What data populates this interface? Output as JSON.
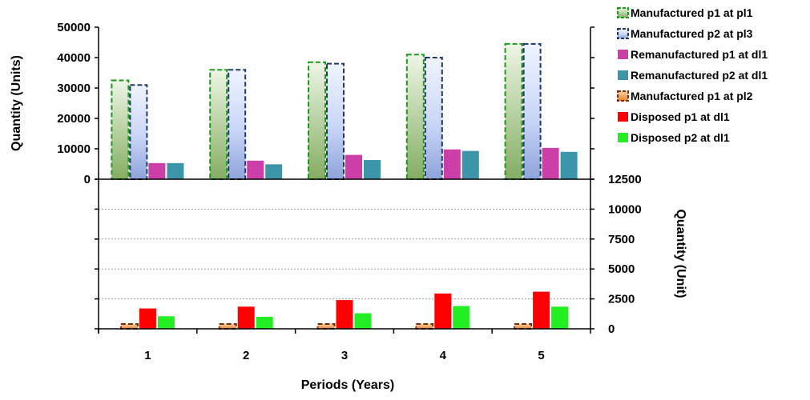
{
  "chart_data": [
    {
      "type": "bar",
      "panel": "top",
      "categories": [
        "1",
        "2",
        "3",
        "4",
        "5"
      ],
      "ylabel": "Quantity (Units)",
      "ylim": [
        0,
        50000
      ],
      "yticks": [
        "0",
        "10000",
        "20000",
        "30000",
        "40000",
        "50000"
      ],
      "grid": false,
      "series": [
        {
          "name": "Manufactured p1 at pl1",
          "values": [
            32500,
            36000,
            38500,
            41000,
            44500
          ],
          "color": "#8db36e",
          "style": "gradient-dashed-green"
        },
        {
          "name": "Manufactured p2 at pl3",
          "values": [
            31000,
            36000,
            38000,
            40000,
            44500
          ],
          "color": "#9fb2e6",
          "style": "gradient-dashed-navy"
        },
        {
          "name": "Remanufactured p1 at dl1",
          "values": [
            5300,
            6100,
            8000,
            9800,
            10300
          ],
          "color": "#cc3fa8"
        },
        {
          "name": "Remanufactured p2 at dl1",
          "values": [
            5300,
            4900,
            6300,
            9300,
            9000
          ],
          "color": "#3d95aa"
        }
      ]
    },
    {
      "type": "bar",
      "panel": "bottom",
      "categories": [
        "1",
        "2",
        "3",
        "4",
        "5"
      ],
      "xlabel": "Periods (Years)",
      "ylabel": "Quantity (Unit)",
      "ylim": [
        0,
        12500
      ],
      "yticks": [
        "0",
        "2500",
        "5000",
        "7500",
        "10000",
        "12500"
      ],
      "grid": true,
      "series": [
        {
          "name": "Manufactured p1 at pl2",
          "values": [
            400,
            400,
            400,
            400,
            400
          ],
          "color": "#f29a52",
          "style": "gradient-dashed-brown"
        },
        {
          "name": "Disposed p1 at dl1",
          "values": [
            1700,
            1850,
            2400,
            2950,
            3100
          ],
          "color": "#ff0000"
        },
        {
          "name": "Disposed p2 at dl1",
          "values": [
            1050,
            1000,
            1300,
            1900,
            1850
          ],
          "color": "#22ee22"
        }
      ]
    }
  ],
  "legend": {
    "items": [
      {
        "label": "Manufactured p1 at pl1",
        "color": "#8db36e",
        "dashed": true,
        "border": "#1c9a1c"
      },
      {
        "label": "Manufactured p2 at pl3",
        "color": "#9fb2e6",
        "dashed": true,
        "border": "#1f3a6a"
      },
      {
        "label": "Remanufactured p1 at dl1",
        "color": "#cc3fa8"
      },
      {
        "label": "Remanufactured p2 at dl1",
        "color": "#3d95aa"
      },
      {
        "label": "Manufactured p1 at pl2",
        "color": "#f29a52",
        "dashed": true,
        "border": "#7a2e08"
      },
      {
        "label": "Disposed p1 at dl1",
        "color": "#ff0000"
      },
      {
        "label": "Disposed p2 at dl1",
        "color": "#22ee22"
      }
    ]
  }
}
